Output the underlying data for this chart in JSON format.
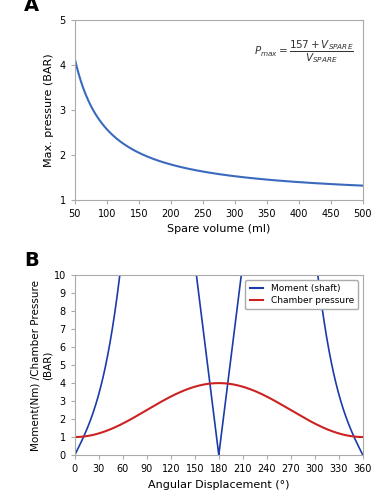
{
  "panel_A": {
    "xlabel": "Spare volume (ml)",
    "ylabel": "Max. pressure (BAR)",
    "xlim": [
      50,
      500
    ],
    "ylim": [
      1,
      5
    ],
    "xticks": [
      50,
      100,
      150,
      200,
      250,
      300,
      350,
      400,
      450,
      500
    ],
    "yticks": [
      1,
      2,
      3,
      4,
      5
    ],
    "line_color": "#3a6abd",
    "label": "A"
  },
  "panel_B": {
    "xlabel": "Angular Displacement (°)",
    "ylabel": "Moment(Nm) /Chamber Pressure\n(BAR)",
    "xlim": [
      0,
      360
    ],
    "ylim": [
      0,
      10
    ],
    "xticks": [
      0,
      30,
      60,
      90,
      120,
      150,
      180,
      210,
      240,
      270,
      300,
      330,
      360
    ],
    "yticks": [
      0,
      1,
      2,
      3,
      4,
      5,
      6,
      7,
      8,
      9,
      10
    ],
    "moment_color": "#1a3caa",
    "pressure_color": "#cc2222",
    "moment_label": "Moment (shaft)",
    "pressure_label": "Chamber pressure",
    "label": "B",
    "scale_moment": 2.55,
    "P_base": 1.0,
    "P_peak": 4.0,
    "crank_r": 0.065
  },
  "figure_bg": "#ffffff",
  "axes_bg": "#ffffff",
  "figsize": [
    3.74,
    5.0
  ],
  "dpi": 100
}
